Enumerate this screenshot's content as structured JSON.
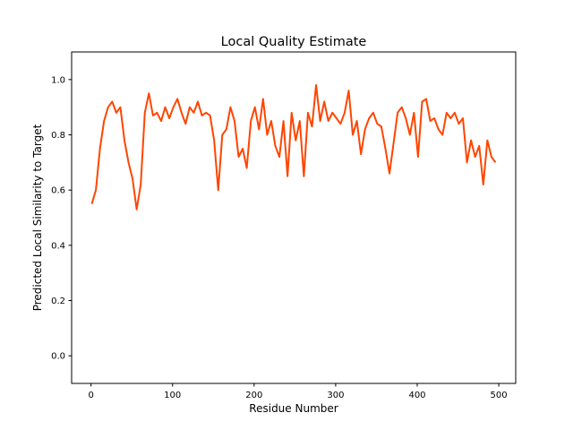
{
  "chart_data": {
    "type": "line",
    "title": "Local Quality Estimate",
    "x_label": "Residue Number",
    "y_label": "Predicted Local Similarity to Target",
    "x": [
      1,
      6,
      11,
      16,
      21,
      26,
      31,
      36,
      41,
      46,
      51,
      56,
      61,
      66,
      71,
      76,
      81,
      86,
      91,
      96,
      101,
      106,
      111,
      116,
      121,
      126,
      131,
      136,
      141,
      146,
      151,
      156,
      161,
      166,
      171,
      176,
      181,
      186,
      191,
      196,
      201,
      206,
      211,
      216,
      221,
      226,
      231,
      236,
      241,
      246,
      251,
      256,
      261,
      266,
      271,
      276,
      281,
      286,
      291,
      296,
      301,
      306,
      311,
      316,
      321,
      326,
      331,
      336,
      341,
      346,
      351,
      356,
      361,
      366,
      371,
      376,
      381,
      386,
      391,
      396,
      401,
      406,
      411,
      416,
      421,
      426,
      431,
      436,
      441,
      446,
      451,
      456,
      461,
      466,
      471,
      476,
      481,
      486,
      491,
      496
    ],
    "series": [
      {
        "color": "#ff4500",
        "values": [
          0.55,
          0.6,
          0.75,
          0.85,
          0.9,
          0.92,
          0.88,
          0.9,
          0.78,
          0.7,
          0.64,
          0.53,
          0.62,
          0.88,
          0.95,
          0.87,
          0.88,
          0.85,
          0.9,
          0.86,
          0.9,
          0.93,
          0.88,
          0.84,
          0.9,
          0.88,
          0.92,
          0.87,
          0.88,
          0.87,
          0.78,
          0.6,
          0.8,
          0.82,
          0.9,
          0.85,
          0.72,
          0.75,
          0.68,
          0.85,
          0.9,
          0.82,
          0.93,
          0.8,
          0.85,
          0.76,
          0.72,
          0.85,
          0.65,
          0.88,
          0.78,
          0.85,
          0.65,
          0.88,
          0.83,
          0.98,
          0.85,
          0.92,
          0.85,
          0.88,
          0.86,
          0.84,
          0.88,
          0.96,
          0.8,
          0.85,
          0.73,
          0.82,
          0.86,
          0.88,
          0.84,
          0.83,
          0.75,
          0.66,
          0.77,
          0.88,
          0.9,
          0.86,
          0.8,
          0.88,
          0.72,
          0.92,
          0.93,
          0.85,
          0.86,
          0.82,
          0.8,
          0.88,
          0.86,
          0.88,
          0.84,
          0.86,
          0.7,
          0.78,
          0.72,
          0.76,
          0.62,
          0.78,
          0.72,
          0.7
        ]
      }
    ],
    "xlim": [
      -23.75,
      520.75
    ],
    "xticks": [
      0,
      100,
      200,
      300,
      400,
      500
    ],
    "ylim": [
      -0.1,
      1.1
    ],
    "yticks": [
      {
        "value": 0,
        "label": "0.0"
      },
      {
        "value": 0.2,
        "label": "0.2"
      },
      {
        "value": 0.4,
        "label": "0.4"
      },
      {
        "value": 0.6,
        "label": "0.6"
      },
      {
        "value": 0.8,
        "label": "0.8"
      },
      {
        "value": 1,
        "label": "1.0"
      }
    ]
  }
}
